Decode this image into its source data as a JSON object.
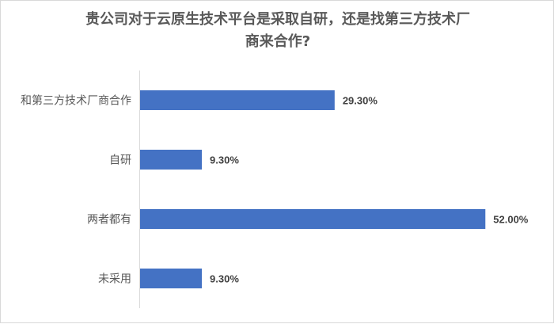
{
  "chart_data": {
    "type": "bar",
    "orientation": "horizontal",
    "title_line1": "贵公司对于云原生技术平台是采取自研，还是找第三方技术厂",
    "title_line2": "商来合作?",
    "categories": [
      "和第三方技术厂商合作",
      "自研",
      "两者都有",
      "未采用"
    ],
    "values": [
      29.3,
      9.3,
      52.0,
      9.3
    ],
    "data_labels": [
      "29.30%",
      "9.30%",
      "52.00%",
      "9.30%"
    ],
    "unit": "%",
    "grid": false,
    "legend": "none",
    "bar_color": "#4472C4"
  }
}
